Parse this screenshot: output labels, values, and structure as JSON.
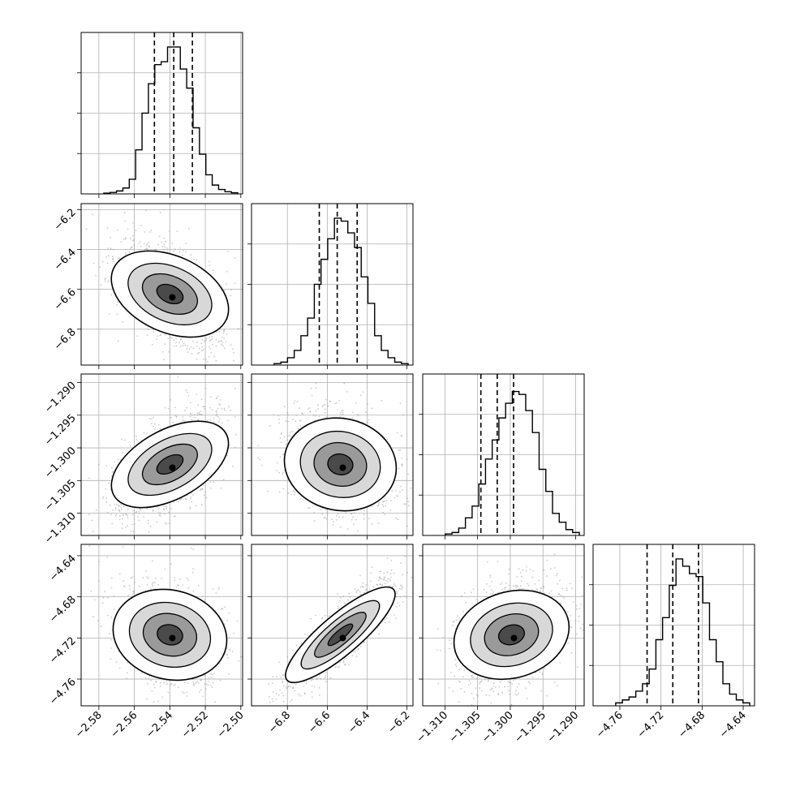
{
  "chart_data": {
    "type": "corner",
    "parameters": [
      {
        "range": [
          -2.59,
          -2.499
        ],
        "ticks": [
          -2.58,
          -2.56,
          -2.54,
          -2.52,
          -2.5
        ],
        "tick_labels": [
          "−2.58",
          "−2.56",
          "−2.54",
          "−2.52",
          "−2.50"
        ],
        "quantiles": [
          -2.5487,
          -2.5378,
          -2.5273
        ]
      },
      {
        "range": [
          -6.98,
          -6.17
        ],
        "ticks": [
          -6.8,
          -6.6,
          -6.4,
          -6.2
        ],
        "tick_labels": [
          "−6.8",
          "−6.6",
          "−6.4",
          "−6.2"
        ],
        "quantiles": [
          -6.64,
          -6.55,
          -6.45
        ]
      },
      {
        "range": [
          -1.3134,
          -1.2887
        ],
        "ticks": [
          -1.31,
          -1.305,
          -1.3,
          -1.295,
          -1.29
        ],
        "tick_labels": [
          "−1.310",
          "−1.305",
          "−1.300",
          "−1.295",
          "−1.290"
        ],
        "quantiles": [
          -1.3045,
          -1.302,
          -1.2995
        ]
      },
      {
        "range": [
          -4.786,
          -4.629
        ],
        "ticks": [
          -4.76,
          -4.72,
          -4.68,
          -4.64
        ],
        "tick_labels": [
          "−4.76",
          "−4.72",
          "−4.68",
          "−4.64"
        ],
        "quantiles": [
          -4.7335,
          -4.7085,
          -4.6835
        ]
      }
    ],
    "histograms": [
      [
        0.005,
        0.01,
        0.02,
        0.04,
        0.1,
        0.3,
        0.55,
        0.75,
        0.88,
        0.9,
        1.0,
        1.0,
        0.85,
        0.72,
        0.45,
        0.27,
        0.13,
        0.06,
        0.03,
        0.015,
        0.008
      ],
      [
        0.01,
        0.02,
        0.05,
        0.1,
        0.2,
        0.32,
        0.55,
        0.72,
        0.86,
        1.0,
        0.98,
        0.9,
        0.8,
        0.6,
        0.42,
        0.2,
        0.1,
        0.05,
        0.02,
        0.01
      ],
      [
        0.01,
        0.02,
        0.05,
        0.12,
        0.2,
        0.35,
        0.52,
        0.65,
        0.8,
        0.9,
        0.98,
        0.96,
        0.85,
        0.7,
        0.45,
        0.3,
        0.15,
        0.09,
        0.04,
        0.02
      ],
      [
        0.02,
        0.04,
        0.06,
        0.1,
        0.15,
        0.25,
        0.45,
        0.6,
        0.82,
        1.0,
        0.95,
        0.9,
        0.88,
        0.7,
        0.45,
        0.3,
        0.15,
        0.08,
        0.04,
        0.02
      ]
    ],
    "pairs": [
      {
        "x": 0,
        "y": 1,
        "correlation": -0.45
      },
      {
        "x": 0,
        "y": 2,
        "correlation": 0.55
      },
      {
        "x": 1,
        "y": 2,
        "correlation": -0.2
      },
      {
        "x": 0,
        "y": 3,
        "correlation": -0.25
      },
      {
        "x": 1,
        "y": 3,
        "correlation": 0.85
      },
      {
        "x": 2,
        "y": 3,
        "correlation": 0.3
      }
    ],
    "grid": true,
    "colors": {
      "line": "#000000",
      "grid": "#b0b0b0",
      "points": "#9e9e9e"
    }
  }
}
